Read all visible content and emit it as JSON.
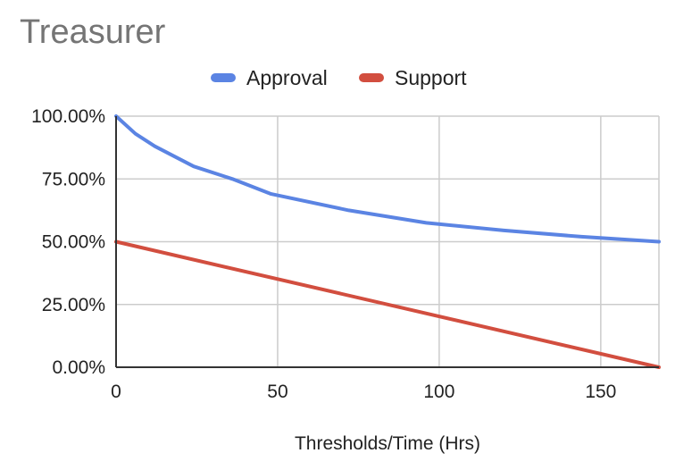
{
  "chart_data": {
    "type": "line",
    "title": "Treasurer",
    "xlabel": "Thresholds/Time (Hrs)",
    "ylabel": "",
    "xlim": [
      0,
      168
    ],
    "ylim": [
      0,
      1
    ],
    "xticks": [
      0,
      50,
      100,
      150
    ],
    "xtick_labels": [
      "0",
      "50",
      "100",
      "150"
    ],
    "yticks": [
      0,
      0.25,
      0.5,
      0.75,
      1
    ],
    "ytick_labels": [
      "0.00%",
      "25.00%",
      "50.00%",
      "75.00%",
      "100.00%"
    ],
    "grid": true,
    "legend_position": "top",
    "series": [
      {
        "name": "Approval",
        "color": "#5b84e3",
        "x": [
          0,
          6,
          12,
          24,
          36,
          48,
          72,
          96,
          120,
          144,
          168
        ],
        "y": [
          1.0,
          0.93,
          0.88,
          0.8,
          0.75,
          0.69,
          0.625,
          0.575,
          0.545,
          0.52,
          0.5
        ]
      },
      {
        "name": "Support",
        "color": "#d24e3f",
        "x": [
          0,
          168
        ],
        "y": [
          0.5,
          0.0
        ]
      }
    ]
  }
}
